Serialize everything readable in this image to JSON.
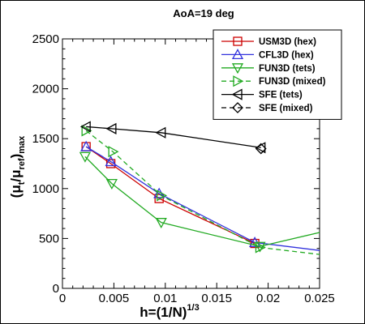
{
  "chart_data": {
    "type": "line",
    "title": "AoA=19 deg",
    "xlabel": {
      "base": "h=(1/N)",
      "sup": "1/3"
    },
    "ylabel": {
      "open": "(μ",
      "sub1": "t",
      "mid": "/μ",
      "sub2": "ref",
      "close": ")",
      "sub3": "max"
    },
    "xlim": [
      0,
      0.025
    ],
    "ylim": [
      0,
      2500
    ],
    "x_ticks": [
      0,
      0.005,
      0.01,
      0.015,
      0.02,
      0.025
    ],
    "x_tick_labels": [
      "0",
      "0.005",
      "0.01",
      "0.015",
      "0.02",
      "0.025"
    ],
    "y_ticks": [
      0,
      500,
      1000,
      1500,
      2000,
      2500
    ],
    "y_tick_labels": [
      "0",
      "500",
      "1000",
      "1500",
      "2000",
      "2500"
    ],
    "grid": false,
    "legend_position": "top-right",
    "series": [
      {
        "name": "USM3D (hex)",
        "color": "#cc0000",
        "marker": "square",
        "line": "solid",
        "x": [
          0.0023,
          0.0047,
          0.0094,
          0.0187
        ],
        "y": [
          1420,
          1250,
          900,
          450
        ],
        "extra_line": []
      },
      {
        "name": "CFL3D (hex)",
        "color": "#3333dd",
        "marker": "triangle-up",
        "line": "solid",
        "x": [
          0.0023,
          0.0047,
          0.0094,
          0.0187
        ],
        "y": [
          1420,
          1270,
          950,
          460
        ],
        "extra_line": [
          [
            0.025,
            380
          ]
        ]
      },
      {
        "name": "FUN3D (tets)",
        "color": "#22aa22",
        "marker": "triangle-down",
        "line": "solid",
        "x": [
          0.0022,
          0.0048,
          0.0096,
          0.0192
        ],
        "y": [
          1320,
          1050,
          660,
          420
        ],
        "extra_line": [
          [
            0.025,
            560
          ]
        ]
      },
      {
        "name": "FUN3D (mixed)",
        "color": "#22aa22",
        "marker": "triangle-right",
        "line": "dashed",
        "x": [
          0.0023,
          0.0049,
          0.0096,
          0.0192
        ],
        "y": [
          1580,
          1370,
          930,
          410
        ],
        "extra_line": [
          [
            0.025,
            340
          ]
        ]
      },
      {
        "name": "SFE (tets)",
        "color": "#000000",
        "marker": "triangle-left",
        "line": "solid",
        "x": [
          0.0023,
          0.0048,
          0.0096,
          0.0193
        ],
        "y": [
          1620,
          1600,
          1560,
          1410
        ],
        "extra_line": []
      },
      {
        "name": "SFE (mixed)",
        "color": "#000000",
        "marker": "diamond",
        "line": "dashed",
        "x": [
          0.0193
        ],
        "y": [
          1400
        ],
        "extra_line": []
      }
    ]
  }
}
